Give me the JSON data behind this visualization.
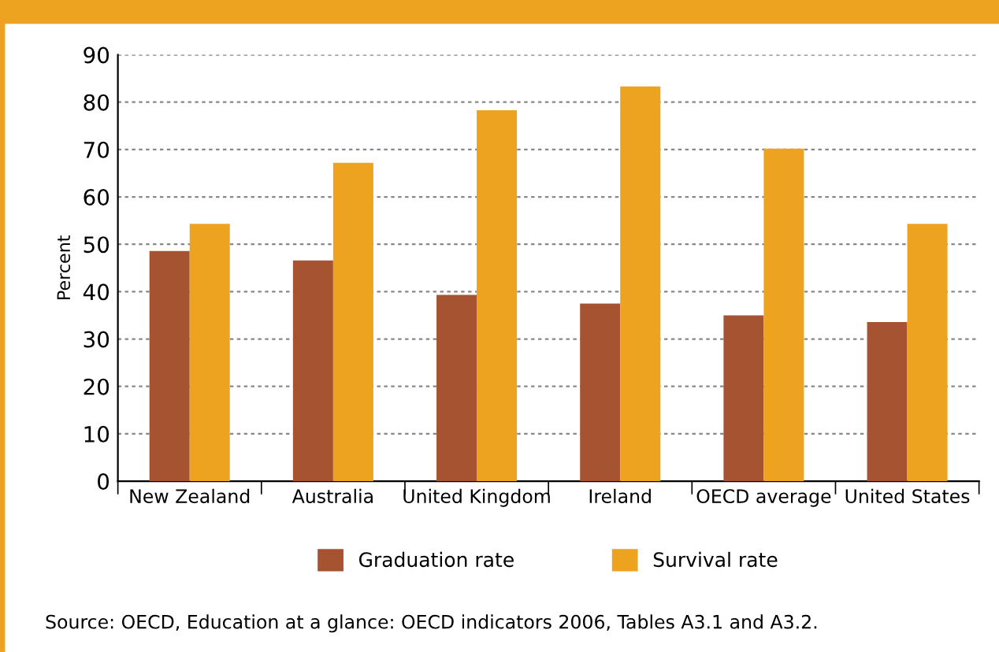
{
  "chart_data": {
    "type": "bar",
    "ylabel": "Percent",
    "categories": [
      "New Zealand",
      "Australia",
      "United Kingdom",
      "Ireland",
      "OECD average",
      "United States"
    ],
    "series": [
      {
        "name": "Graduation rate",
        "color": "#a65332",
        "values": [
          48.6,
          46.6,
          39.3,
          37.5,
          35.0,
          33.6
        ]
      },
      {
        "name": "Survival rate",
        "color": "#eda220",
        "values": [
          54.3,
          67.2,
          78.3,
          83.3,
          70.2,
          54.3
        ]
      }
    ],
    "ylim": [
      0,
      90
    ],
    "yticks": [
      0,
      10,
      20,
      30,
      40,
      50,
      60,
      70,
      80,
      90
    ],
    "grid": "y",
    "legend": "bottom",
    "annotations": [
      "Source: OECD, Education at a glance: OECD indicators 2006, Tables A3.1 and A3.2."
    ]
  }
}
